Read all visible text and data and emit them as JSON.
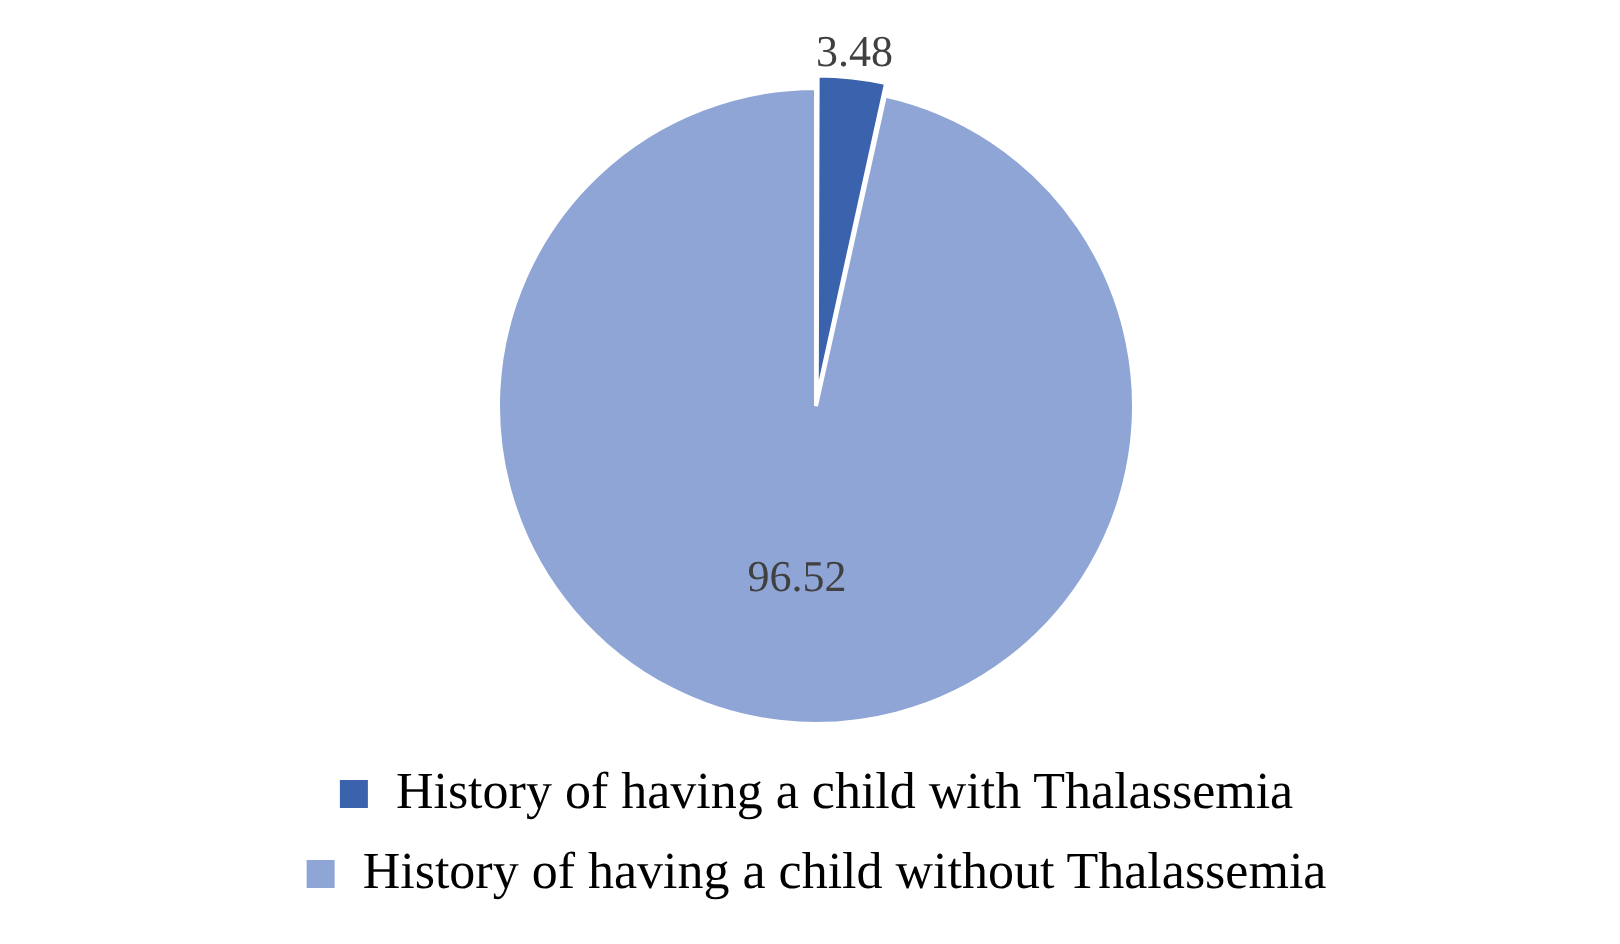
{
  "chart_data": {
    "type": "pie",
    "categories": [
      "History of having a child with Thalassemia",
      "History of having a child without Thalassemia"
    ],
    "values": [
      3.48,
      96.52
    ],
    "colors": [
      "#3a62ad",
      "#8ea5d5"
    ],
    "data_labels": true,
    "legend": "bottom"
  }
}
